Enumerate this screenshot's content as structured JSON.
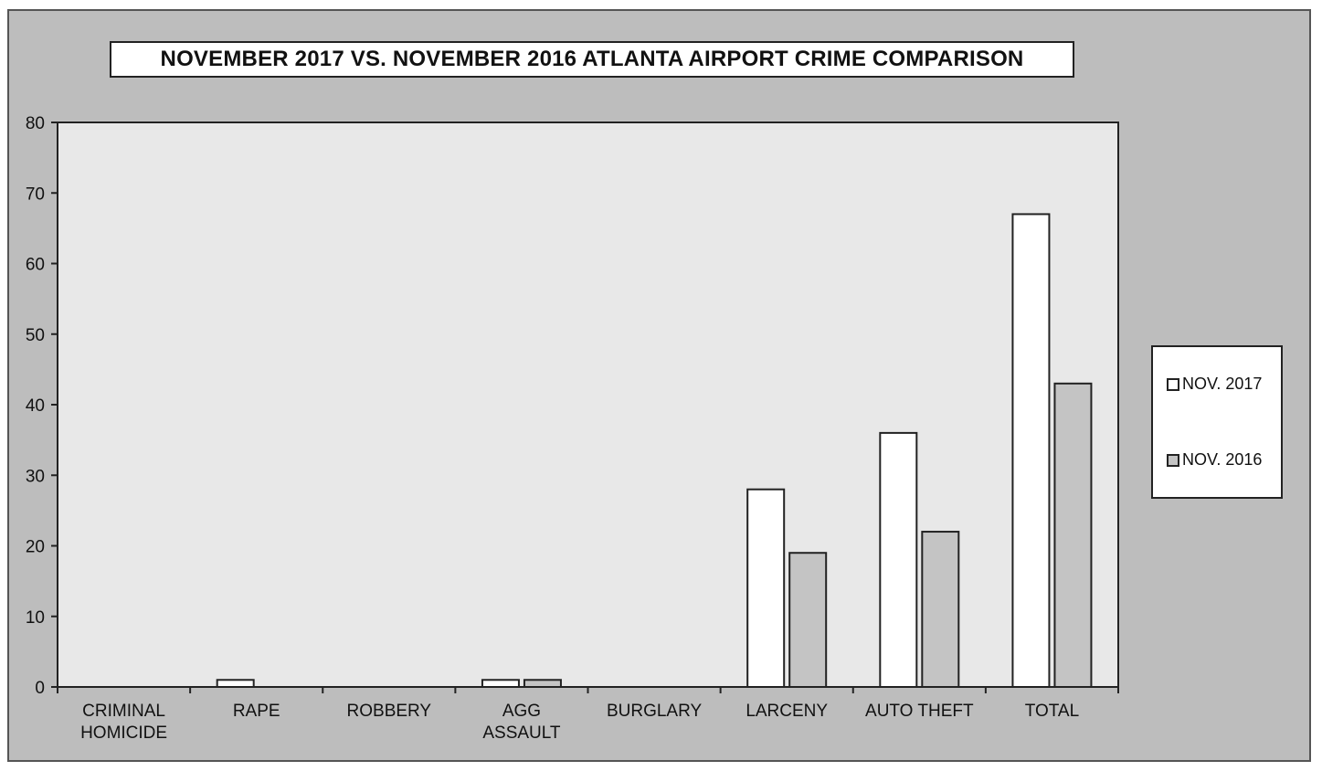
{
  "chart_data": {
    "type": "bar",
    "title": "NOVEMBER 2017 VS. NOVEMBER 2016 ATLANTA AIRPORT CRIME COMPARISON",
    "categories": [
      [
        "CRIMINAL",
        "HOMICIDE"
      ],
      [
        "RAPE"
      ],
      [
        "ROBBERY"
      ],
      [
        "AGG",
        "ASSAULT"
      ],
      [
        "BURGLARY"
      ],
      [
        "LARCENY"
      ],
      [
        "AUTO THEFT"
      ],
      [
        "TOTAL"
      ]
    ],
    "series": [
      {
        "name": "NOV. 2017",
        "values": [
          0,
          1,
          0,
          1,
          0,
          28,
          36,
          67
        ],
        "color": "#ffffff"
      },
      {
        "name": "NOV. 2016",
        "values": [
          0,
          0,
          0,
          1,
          0,
          19,
          22,
          43
        ],
        "color": "#c4c4c4"
      }
    ],
    "ylim": [
      0,
      80
    ],
    "yticks": [
      0,
      10,
      20,
      30,
      40,
      50,
      60,
      70,
      80
    ],
    "grid": false,
    "legend_position": "right",
    "colors": {
      "background": "#bdbdbd",
      "plot_area": "#e8e8e8",
      "axis": "#222222"
    }
  }
}
